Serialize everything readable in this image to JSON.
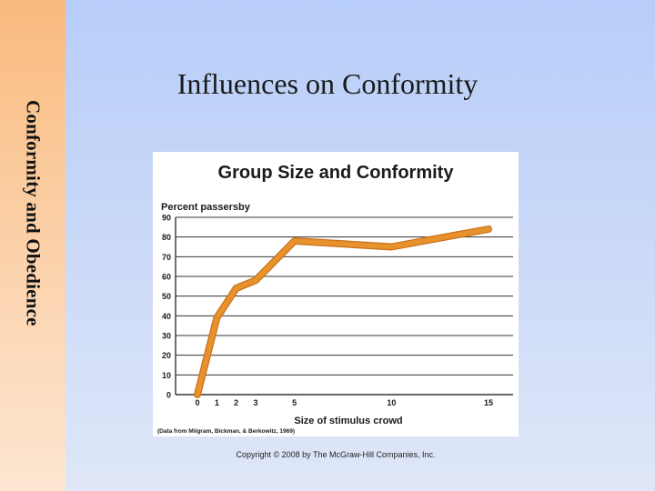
{
  "sidebar": {
    "title": "Conformity and Obedience"
  },
  "slide": {
    "title": "Influences on Conformity",
    "copyright": "Copyright © 2008 by The McGraw-Hill Companies, Inc."
  },
  "colors": {
    "line": "#e8922d",
    "line_shadow": "#c8731c",
    "grid": "#333333"
  },
  "chart_data": {
    "type": "line",
    "title": "Group Size and Conformity",
    "ylabel": "Percent passersby",
    "xlabel": "Size of stimulus crowd",
    "source": "(Data from Milgram, Bickman, & Berkowitz, 1969)",
    "xlim": [
      0,
      15
    ],
    "ylim": [
      0,
      90
    ],
    "x_ticks": [
      0,
      1,
      2,
      3,
      5,
      10,
      15
    ],
    "y_ticks": [
      0,
      10,
      20,
      30,
      40,
      50,
      60,
      70,
      80,
      90
    ],
    "grid": true,
    "series": [
      {
        "x": [
          0,
          1,
          2,
          3,
          5,
          10,
          15
        ],
        "y": [
          0,
          39,
          54,
          58,
          78,
          75,
          84
        ]
      }
    ]
  }
}
